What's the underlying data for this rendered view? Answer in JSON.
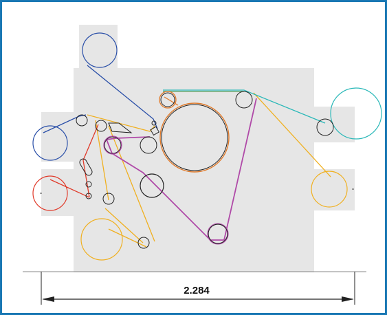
{
  "dimension": {
    "value": "2.284"
  },
  "colors": {
    "frame": "#1a78b4",
    "machine_body": "#e6e6e6",
    "blue_web": "#2a4fa8",
    "red_web": "#e03a2a",
    "yellow_web": "#f0b020",
    "magenta_web": "#b04aa8",
    "teal_web": "#2ab8b8",
    "green_web": "#4a9a58",
    "orange_web": "#e07a2a",
    "idle_roller": "#222222"
  }
}
